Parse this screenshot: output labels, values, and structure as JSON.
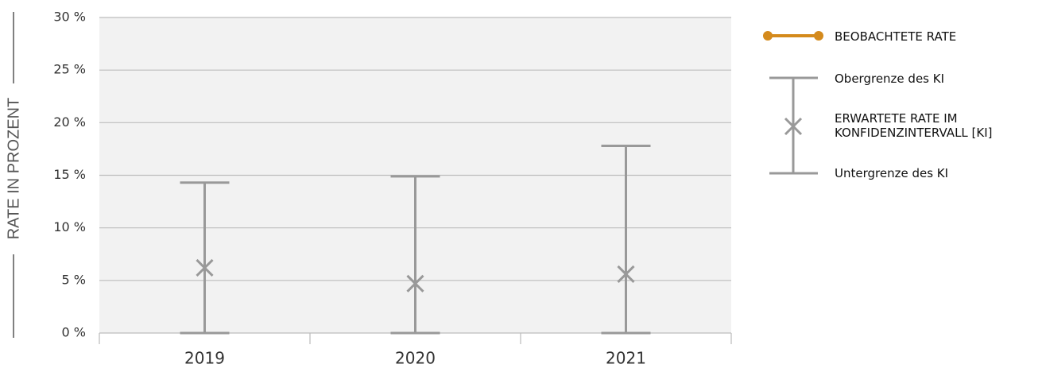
{
  "chart_data": {
    "type": "errorbar",
    "y_label": "RATE IN PROZENT",
    "categories": [
      "2019",
      "2020",
      "2021"
    ],
    "series": [
      {
        "name": "BEOBACHTETE RATE",
        "color": "#d48a1c",
        "values": [
          null,
          null,
          null
        ]
      },
      {
        "name": "Obergrenze des KI",
        "color": "#999999",
        "values": [
          14.3,
          14.9,
          17.8
        ]
      },
      {
        "name": "ERWARTETE RATE IM KONFIDENZINTERVALL [KI]",
        "color": "#999999",
        "values": [
          6.2,
          4.7,
          5.6
        ]
      },
      {
        "name": "Untergrenze des KI",
        "color": "#999999",
        "values": [
          0,
          0,
          0
        ]
      }
    ],
    "ylim": [
      0,
      30
    ],
    "yticks": [
      {
        "value": 0,
        "label": "0 %"
      },
      {
        "value": 5,
        "label": "5 %"
      },
      {
        "value": 10,
        "label": "10 %"
      },
      {
        "value": 15,
        "label": "15 %"
      },
      {
        "value": 20,
        "label": "20 %"
      },
      {
        "value": 25,
        "label": "25 %"
      },
      {
        "value": 30,
        "label": "30 %"
      }
    ],
    "grid": true
  }
}
